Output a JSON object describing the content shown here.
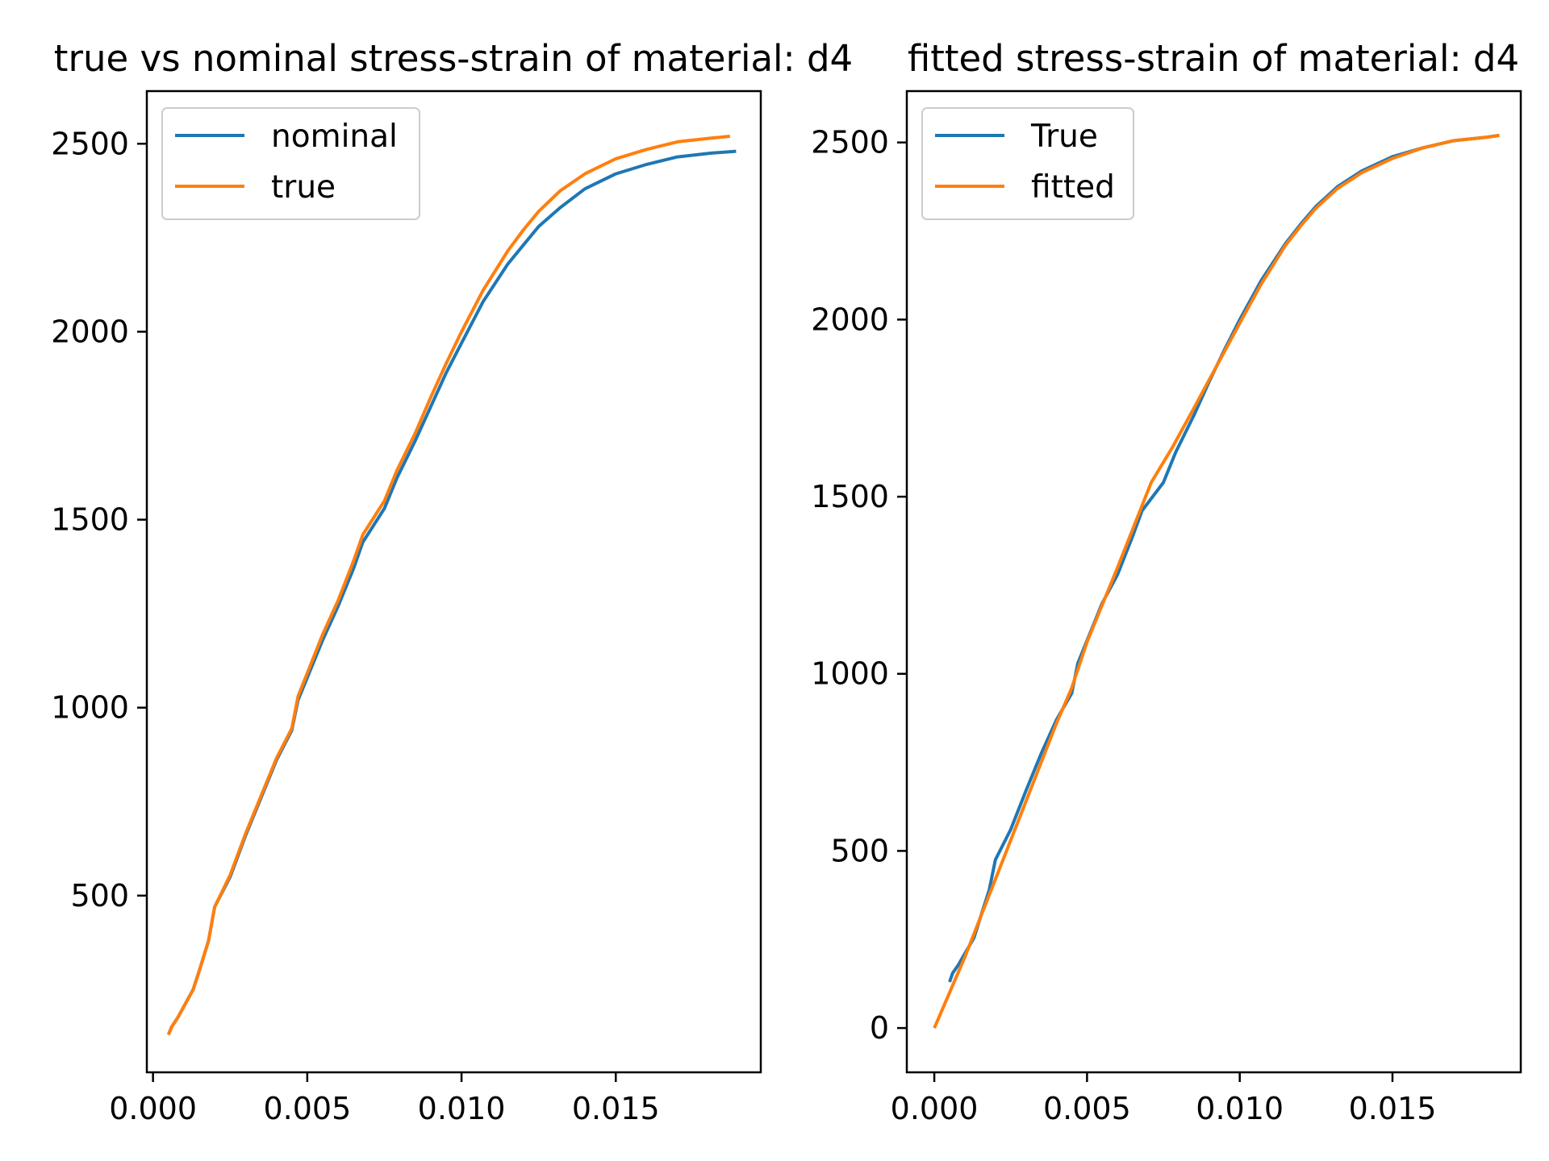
{
  "figure": {
    "colors": {
      "series1": "#1f77b4",
      "series2": "#ff7f0e",
      "axes": "#000000",
      "legend_border": "#cccccc"
    }
  },
  "chart_data": [
    {
      "type": "line",
      "title": "true vs nominal stress-strain of material: d4",
      "xlabel": "",
      "ylabel": "",
      "xlim": [
        -0.0002,
        0.0197
      ],
      "ylim": [
        30,
        2640
      ],
      "xticks": [
        "0.000",
        "0.005",
        "0.010",
        "0.015"
      ],
      "xtick_values": [
        0.0,
        0.005,
        0.01,
        0.015
      ],
      "yticks": [
        "500",
        "1000",
        "1500",
        "2000",
        "2500"
      ],
      "ytick_values": [
        500,
        1000,
        1500,
        2000,
        2500
      ],
      "grid": false,
      "legend_position": "upper-left",
      "series": [
        {
          "name": "nominal",
          "color": "#1f77b4",
          "x": [
            0.0005,
            0.0006,
            0.0008,
            0.0009,
            0.0011,
            0.0013,
            0.0015,
            0.0018,
            0.002,
            0.0025,
            0.003,
            0.0035,
            0.004,
            0.0045,
            0.0047,
            0.0055,
            0.006,
            0.0065,
            0.0068,
            0.0075,
            0.0079,
            0.0085,
            0.009,
            0.0095,
            0.01,
            0.0107,
            0.0115,
            0.012,
            0.0125,
            0.0132,
            0.014,
            0.015,
            0.016,
            0.017,
            0.0181,
            0.0189
          ],
          "y": [
            130,
            150,
            175,
            190,
            220,
            250,
            300,
            380,
            470,
            550,
            660,
            760,
            860,
            940,
            1020,
            1180,
            1270,
            1370,
            1440,
            1530,
            1610,
            1710,
            1800,
            1890,
            1970,
            2080,
            2180,
            2230,
            2280,
            2330,
            2380,
            2420,
            2445,
            2465,
            2475,
            2480
          ]
        },
        {
          "name": "true",
          "color": "#ff7f0e",
          "x": [
            0.0005,
            0.0006,
            0.0008,
            0.0009,
            0.0011,
            0.0013,
            0.0015,
            0.0018,
            0.002,
            0.0025,
            0.003,
            0.0035,
            0.004,
            0.0045,
            0.0047,
            0.0055,
            0.006,
            0.0065,
            0.0068,
            0.0075,
            0.0079,
            0.0085,
            0.009,
            0.0095,
            0.01,
            0.0107,
            0.0115,
            0.012,
            0.0125,
            0.0132,
            0.014,
            0.015,
            0.016,
            0.017,
            0.0181,
            0.0187
          ],
          "y": [
            130,
            150,
            175,
            190,
            220,
            250,
            300,
            380,
            470,
            555,
            665,
            765,
            865,
            945,
            1030,
            1195,
            1285,
            1390,
            1460,
            1550,
            1630,
            1730,
            1825,
            1915,
            2000,
            2110,
            2215,
            2270,
            2320,
            2375,
            2420,
            2460,
            2485,
            2505,
            2515,
            2520
          ]
        }
      ]
    },
    {
      "type": "line",
      "title": "fitted stress-strain of material: d4",
      "xlabel": "",
      "ylabel": "",
      "xlim": [
        -0.0009,
        0.0192
      ],
      "ylim": [
        -125,
        2645
      ],
      "xticks": [
        "0.000",
        "0.005",
        "0.010",
        "0.015"
      ],
      "xtick_values": [
        0.0,
        0.005,
        0.01,
        0.015
      ],
      "yticks": [
        "0",
        "500",
        "1000",
        "1500",
        "2000",
        "2500"
      ],
      "ytick_values": [
        0,
        500,
        1000,
        1500,
        2000,
        2500
      ],
      "grid": false,
      "legend_position": "upper-left",
      "series": [
        {
          "name": "True",
          "color": "#1f77b4",
          "x": [
            0.0005,
            0.0006,
            0.0008,
            0.0009,
            0.0011,
            0.0013,
            0.0015,
            0.0018,
            0.002,
            0.0025,
            0.003,
            0.0035,
            0.004,
            0.0045,
            0.0047,
            0.0055,
            0.006,
            0.0065,
            0.0068,
            0.0075,
            0.0079,
            0.0085,
            0.009,
            0.0095,
            0.01,
            0.0107,
            0.0115,
            0.012,
            0.0125,
            0.0132,
            0.014,
            0.015,
            0.016,
            0.017,
            0.0181,
            0.0185
          ],
          "y": [
            130,
            155,
            180,
            195,
            225,
            255,
            310,
            390,
            475,
            560,
            670,
            775,
            870,
            945,
            1030,
            1200,
            1280,
            1390,
            1460,
            1540,
            1625,
            1730,
            1825,
            1915,
            2000,
            2110,
            2215,
            2270,
            2320,
            2375,
            2420,
            2460,
            2485,
            2505,
            2515,
            2520
          ]
        },
        {
          "name": "fitted",
          "color": "#ff7f0e",
          "x": [
            0.0,
            0.001,
            0.002,
            0.003,
            0.004,
            0.0045,
            0.005,
            0.006,
            0.0071,
            0.0078,
            0.0085,
            0.009,
            0.0095,
            0.01,
            0.0107,
            0.0115,
            0.012,
            0.0125,
            0.0132,
            0.014,
            0.015,
            0.016,
            0.017,
            0.0181,
            0.0185
          ],
          "y": [
            0,
            200,
            420,
            640,
            860,
            960,
            1090,
            1300,
            1540,
            1640,
            1750,
            1830,
            1910,
            1990,
            2100,
            2210,
            2265,
            2315,
            2370,
            2415,
            2455,
            2485,
            2505,
            2515,
            2520
          ]
        }
      ]
    }
  ]
}
